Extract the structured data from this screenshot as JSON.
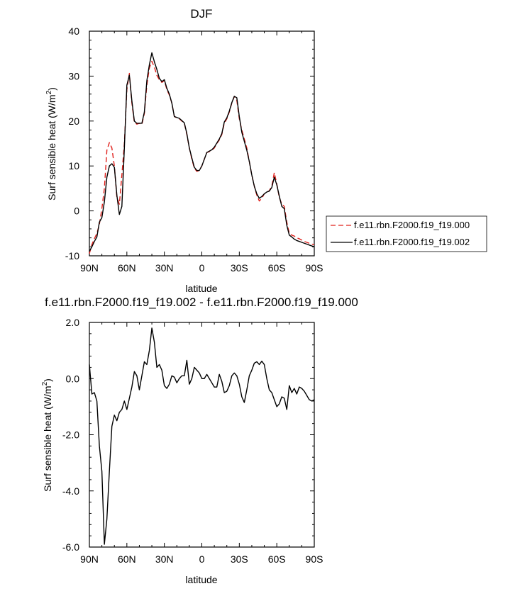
{
  "chart_data": [
    {
      "type": "line",
      "title": "DJF",
      "xlabel": "latitude",
      "ylabel": "Surf sensible heat (W/m",
      "ylabel_sup": "2",
      "ylabel_tail": ")",
      "xlim": [
        90,
        -90
      ],
      "ylim": [
        -10,
        40
      ],
      "xticks": [
        90,
        60,
        30,
        0,
        -30,
        -60,
        -90
      ],
      "xtick_labels": [
        "90N",
        "60N",
        "30N",
        "0",
        "30S",
        "60S",
        "90S"
      ],
      "yticks": [
        -10,
        0,
        10,
        20,
        30,
        40
      ],
      "ytick_labels": [
        "-10",
        "0",
        "10",
        "20",
        "30",
        "40"
      ],
      "legend_position": "right",
      "series": [
        {
          "name": "f.e11.rbn.F2000.f19_f19.000",
          "color": "#e0201b",
          "dash": "dashed",
          "x": [
            90,
            88,
            86,
            84,
            82,
            80,
            78,
            76,
            74,
            72,
            70,
            68,
            66,
            64,
            62,
            60,
            58,
            56,
            54,
            52,
            50,
            48,
            46,
            44,
            42,
            40,
            38,
            36,
            34,
            32,
            30,
            28,
            26,
            24,
            22,
            20,
            18,
            16,
            14,
            12,
            10,
            8,
            6,
            4,
            2,
            0,
            -2,
            -4,
            -6,
            -8,
            -10,
            -12,
            -14,
            -16,
            -18,
            -20,
            -22,
            -24,
            -26,
            -28,
            -30,
            -32,
            -34,
            -36,
            -38,
            -40,
            -42,
            -44,
            -46,
            -48,
            -50,
            -52,
            -54,
            -56,
            -58,
            -60,
            -62,
            -64,
            -66,
            -68,
            -70,
            -72,
            -74,
            -76,
            -78,
            -80,
            -82,
            -84,
            -86,
            -88,
            -90
          ],
          "y": [
            -9.5,
            -7.5,
            -6.2,
            -5.0,
            -3.0,
            0.5,
            5.0,
            13.5,
            15.2,
            14.0,
            10.0,
            3.0,
            1.5,
            8.0,
            15.0,
            27.0,
            30.6,
            24.0,
            19.7,
            19.3,
            19.5,
            19.2,
            21.7,
            28.0,
            31.8,
            33.3,
            32.0,
            30.2,
            29.2,
            28.6,
            29.0,
            27.0,
            25.8,
            24.0,
            21.0,
            20.7,
            20.5,
            20.0,
            19.5,
            17.0,
            14.0,
            11.5,
            9.5,
            8.8,
            9.0,
            10.0,
            11.5,
            13.0,
            13.2,
            13.5,
            14.0,
            15.0,
            15.8,
            17.0,
            19.5,
            20.5,
            22.0,
            24.0,
            25.5,
            24.6,
            20.5,
            18.0,
            16.0,
            14.0,
            11.0,
            8.0,
            5.5,
            3.5,
            2.2,
            2.8,
            3.8,
            4.2,
            4.5,
            5.5,
            8.5,
            6.0,
            3.0,
            1.5,
            1.0,
            -2.5,
            -5.0,
            -5.4,
            -5.6,
            -6.0,
            -6.2,
            -6.5,
            -6.8,
            -7.0,
            -7.2,
            -7.4,
            -7.5
          ]
        },
        {
          "name": "f.e11.rbn.F2000.f19_f19.002",
          "color": "#000000",
          "dash": "solid",
          "x": [
            90,
            88,
            86,
            84,
            82,
            80,
            78,
            76,
            74,
            72,
            70,
            68,
            66,
            64,
            62,
            60,
            58,
            56,
            54,
            52,
            50,
            48,
            46,
            44,
            42,
            40,
            38,
            36,
            34,
            32,
            30,
            28,
            26,
            24,
            22,
            20,
            18,
            16,
            14,
            12,
            10,
            8,
            6,
            4,
            2,
            0,
            -2,
            -4,
            -6,
            -8,
            -10,
            -12,
            -14,
            -16,
            -18,
            -20,
            -22,
            -24,
            -26,
            -28,
            -30,
            -32,
            -34,
            -36,
            -38,
            -40,
            -42,
            -44,
            -46,
            -48,
            -50,
            -52,
            -54,
            -56,
            -58,
            -60,
            -62,
            -64,
            -66,
            -68,
            -70,
            -72,
            -74,
            -76,
            -78,
            -80,
            -82,
            -84,
            -86,
            -88,
            -90
          ],
          "y": [
            -9.0,
            -8.0,
            -6.8,
            -5.8,
            -2.5,
            -1.5,
            2.0,
            7.5,
            10.0,
            10.5,
            9.7,
            3.5,
            -0.8,
            1.0,
            14.0,
            28.0,
            30.2,
            24.5,
            20.0,
            19.5,
            19.5,
            19.5,
            22.0,
            29.0,
            32.5,
            35.2,
            33.2,
            31.5,
            29.5,
            28.8,
            29.2,
            27.3,
            26.0,
            24.0,
            21.0,
            20.8,
            20.6,
            20.1,
            19.6,
            17.2,
            14.0,
            11.8,
            9.7,
            9.0,
            9.0,
            10.0,
            11.5,
            13.0,
            13.3,
            13.6,
            14.2,
            15.1,
            16.0,
            17.2,
            19.8,
            20.7,
            22.2,
            24.1,
            25.5,
            25.2,
            21.0,
            17.5,
            15.5,
            13.5,
            11.0,
            8.0,
            5.5,
            3.8,
            2.8,
            3.2,
            3.8,
            4.2,
            4.4,
            5.2,
            7.5,
            5.8,
            3.3,
            1.0,
            0.5,
            -3.2,
            -5.4,
            -5.8,
            -6.3,
            -6.6,
            -6.8,
            -7.0,
            -7.2,
            -7.4,
            -7.6,
            -7.8,
            -8.0
          ]
        }
      ]
    },
    {
      "type": "line",
      "title": "f.e11.rbn.F2000.f19_f19.002 - f.e11.rbn.F2000.f19_f19.000",
      "xlabel": "latitude",
      "ylabel": "Surf sensible heat (W/m",
      "ylabel_sup": "2",
      "ylabel_tail": ")",
      "xlim": [
        90,
        -90
      ],
      "ylim": [
        -6.0,
        2.0
      ],
      "xticks": [
        90,
        60,
        30,
        0,
        -30,
        -60,
        -90
      ],
      "xtick_labels": [
        "90N",
        "60N",
        "30N",
        "0",
        "30S",
        "60S",
        "90S"
      ],
      "yticks": [
        -6.0,
        -4.0,
        -2.0,
        0.0,
        2.0
      ],
      "ytick_labels": [
        "-6.0",
        "-4.0",
        "-2.0",
        "0.0",
        "2.0"
      ],
      "series": [
        {
          "color": "#000000",
          "dash": "solid",
          "x": [
            90,
            88,
            86,
            84,
            82,
            80,
            78,
            76,
            74,
            72,
            70,
            68,
            66,
            64,
            62,
            60,
            58,
            56,
            54,
            52,
            50,
            48,
            46,
            44,
            42,
            40,
            38,
            36,
            34,
            32,
            30,
            28,
            26,
            24,
            22,
            20,
            18,
            16,
            14,
            12,
            10,
            8,
            6,
            4,
            2,
            0,
            -2,
            -4,
            -6,
            -8,
            -10,
            -12,
            -14,
            -16,
            -18,
            -20,
            -22,
            -24,
            -26,
            -28,
            -30,
            -32,
            -34,
            -36,
            -38,
            -40,
            -42,
            -44,
            -46,
            -48,
            -50,
            -52,
            -54,
            -56,
            -58,
            -60,
            -62,
            -64,
            -66,
            -68,
            -70,
            -72,
            -74,
            -76,
            -78,
            -80,
            -82,
            -84,
            -86,
            -88,
            -90
          ],
          "y": [
            0.5,
            -0.55,
            -0.5,
            -0.8,
            -2.4,
            -3.3,
            -5.9,
            -5.0,
            -3.3,
            -1.7,
            -1.3,
            -1.5,
            -1.2,
            -1.1,
            -0.8,
            -1.1,
            -0.7,
            -0.3,
            0.25,
            0.1,
            -0.4,
            0.1,
            0.6,
            0.5,
            1.0,
            1.8,
            1.3,
            0.4,
            0.5,
            0.3,
            -0.25,
            -0.35,
            -0.2,
            0.1,
            0.05,
            -0.15,
            0.0,
            0.1,
            0.1,
            0.65,
            -0.2,
            0.0,
            0.4,
            0.3,
            0.2,
            0.0,
            0.0,
            0.15,
            0.0,
            -0.15,
            -0.3,
            -0.3,
            0.15,
            -0.1,
            -0.5,
            -0.45,
            -0.25,
            0.1,
            0.2,
            0.1,
            -0.2,
            -0.65,
            -0.85,
            -0.4,
            0.1,
            0.3,
            0.55,
            0.6,
            0.5,
            0.62,
            0.5,
            0.0,
            -0.4,
            -0.5,
            -0.75,
            -1.0,
            -0.9,
            -0.65,
            -0.7,
            -1.1,
            -0.25,
            -0.5,
            -0.35,
            -0.55,
            -0.3,
            -0.35,
            -0.45,
            -0.6,
            -0.75,
            -0.8,
            -0.75
          ]
        }
      ]
    }
  ]
}
